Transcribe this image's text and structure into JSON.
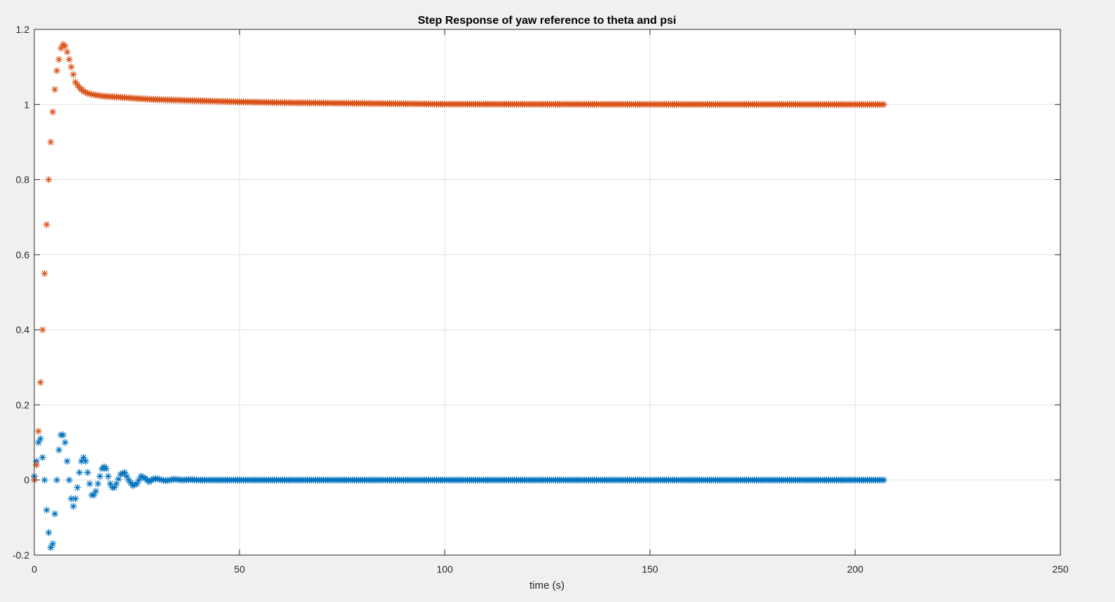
{
  "chart_data": {
    "type": "scatter",
    "title": "Step Response of yaw reference to theta and psi",
    "xlabel": "time (s)",
    "ylabel": "",
    "xlim": [
      0,
      250
    ],
    "ylim": [
      -0.2,
      1.2
    ],
    "xticks": [
      0,
      50,
      100,
      150,
      200,
      250
    ],
    "xtick_labels": [
      "0",
      "50",
      "100",
      "150",
      "200",
      "250"
    ],
    "yticks": [
      -0.2,
      0,
      0.2,
      0.4,
      0.6,
      0.8,
      1,
      1.2
    ],
    "ytick_labels": [
      "-0.2",
      "0",
      "0.2",
      "0.4",
      "0.6",
      "0.8",
      "1",
      "1.2"
    ],
    "grid": true,
    "marker": "asterisk",
    "series": [
      {
        "color": "#0072BD",
        "x": [
          0,
          0.5,
          1,
          1.5,
          2,
          2.5,
          3,
          3.5,
          4,
          4.5,
          5,
          5.5,
          6,
          6.5,
          7,
          7.5,
          8,
          8.5,
          9,
          9.5,
          10,
          10.5,
          11,
          11.5,
          12,
          12.5,
          13,
          13.5,
          14,
          14.5,
          15,
          15.5,
          16,
          16.5,
          17,
          17.5,
          18,
          18.5,
          19,
          19.5,
          20,
          21,
          22,
          23,
          24,
          25,
          26,
          27,
          28,
          29,
          30,
          32,
          34,
          36,
          38,
          40,
          45,
          50,
          60,
          80,
          100,
          150,
          180,
          207
        ],
        "y": [
          0.01,
          0.05,
          0.1,
          0.11,
          0.06,
          0.0,
          -0.08,
          -0.14,
          -0.18,
          -0.17,
          -0.09,
          0.0,
          0.08,
          0.12,
          0.12,
          0.1,
          0.05,
          0.0,
          -0.05,
          -0.07,
          -0.05,
          -0.02,
          0.02,
          0.05,
          0.06,
          0.05,
          0.02,
          -0.01,
          -0.04,
          -0.04,
          -0.03,
          -0.01,
          0.01,
          0.03,
          0.035,
          0.03,
          0.01,
          -0.01,
          -0.02,
          -0.02,
          -0.01,
          0.015,
          0.02,
          0.0,
          -0.015,
          -0.01,
          0.01,
          0.005,
          -0.005,
          0.003,
          0.003,
          -0.002,
          0.002,
          0.0,
          0.001,
          0.0,
          0.0,
          0.0,
          0.0,
          0.0,
          0.0,
          0.0,
          0.0,
          0.0
        ]
      },
      {
        "color": "#D95319",
        "x": [
          0,
          0.5,
          1,
          1.5,
          2,
          2.5,
          3,
          3.5,
          4,
          4.5,
          5,
          5.5,
          6,
          6.5,
          7,
          7.5,
          8,
          8.5,
          9,
          9.5,
          10,
          11,
          12,
          13,
          14,
          15,
          17,
          20,
          25,
          30,
          40,
          50,
          60,
          80,
          100,
          150,
          207
        ],
        "y": [
          0.0,
          0.04,
          0.13,
          0.26,
          0.4,
          0.55,
          0.68,
          0.8,
          0.9,
          0.98,
          1.04,
          1.09,
          1.12,
          1.15,
          1.16,
          1.155,
          1.14,
          1.12,
          1.1,
          1.08,
          1.06,
          1.045,
          1.035,
          1.03,
          1.027,
          1.025,
          1.022,
          1.02,
          1.016,
          1.013,
          1.01,
          1.007,
          1.005,
          1.003,
          1.001,
          1.0005,
          1.0
        ]
      }
    ]
  }
}
